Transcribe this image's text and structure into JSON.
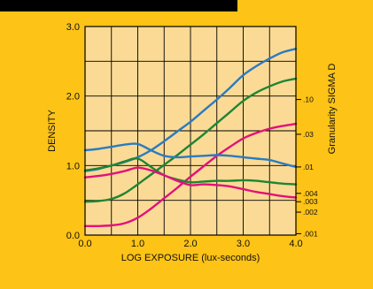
{
  "chart_data": {
    "type": "line",
    "title": "",
    "xlabel": "LOG EXPOSURE (lux-seconds)",
    "ylabel": "DENSITY",
    "ylabel_right": "Granularity SIGMA D",
    "xlim": [
      0.0,
      4.0
    ],
    "ylim": [
      0.0,
      3.0
    ],
    "x_ticks": [
      "0.0",
      "1.0",
      "2.0",
      "3.0",
      "4.0"
    ],
    "y_ticks": [
      "0.0",
      "1.0",
      "2.0",
      "3.0"
    ],
    "right_ticks": [
      {
        "label": ".10",
        "density": 1.95
      },
      {
        "label": ".03",
        "density": 1.45
      },
      {
        "label": ".01",
        "density": 0.98
      },
      {
        "label": ".004",
        "density": 0.6
      },
      {
        "label": ".003",
        "density": 0.48
      },
      {
        "label": ".002",
        "density": 0.33
      },
      {
        "label": ".001",
        "density": 0.02
      }
    ],
    "grid": true,
    "colors": {
      "plot_background": "#fbda95",
      "frame_background": "#fdc316",
      "grid": "#000000",
      "blue": "#2a7bc1",
      "green": "#1e8533",
      "magenta": "#e2117a"
    },
    "series": [
      {
        "group": "density",
        "color": "blue",
        "x": [
          0.0,
          0.25,
          0.5,
          0.75,
          1.0,
          1.25,
          1.5,
          1.75,
          2.0,
          2.25,
          2.5,
          2.75,
          3.0,
          3.25,
          3.5,
          3.75,
          4.0
        ],
        "y": [
          0.92,
          0.95,
          1.0,
          1.05,
          1.12,
          1.22,
          1.35,
          1.49,
          1.63,
          1.79,
          1.95,
          2.12,
          2.3,
          2.43,
          2.54,
          2.63,
          2.68
        ]
      },
      {
        "group": "density",
        "color": "green",
        "x": [
          0.0,
          0.25,
          0.5,
          0.75,
          1.0,
          1.25,
          1.5,
          1.75,
          2.0,
          2.25,
          2.5,
          2.75,
          3.0,
          3.25,
          3.5,
          3.75,
          4.0
        ],
        "y": [
          0.48,
          0.49,
          0.52,
          0.6,
          0.73,
          0.87,
          1.01,
          1.15,
          1.3,
          1.45,
          1.61,
          1.77,
          1.93,
          2.05,
          2.14,
          2.21,
          2.25
        ]
      },
      {
        "group": "density",
        "color": "magenta",
        "x": [
          0.0,
          0.25,
          0.5,
          0.75,
          1.0,
          1.25,
          1.5,
          1.75,
          2.0,
          2.25,
          2.5,
          2.75,
          3.0,
          3.25,
          3.5,
          3.75,
          4.0
        ],
        "y": [
          0.13,
          0.13,
          0.14,
          0.17,
          0.25,
          0.38,
          0.53,
          0.68,
          0.84,
          0.99,
          1.14,
          1.27,
          1.39,
          1.47,
          1.53,
          1.57,
          1.6
        ]
      },
      {
        "group": "granularity",
        "color": "blue",
        "x": [
          0.0,
          0.25,
          0.5,
          0.75,
          1.0,
          1.25,
          1.5,
          1.75,
          2.0,
          2.25,
          2.5,
          2.75,
          3.0,
          3.25,
          3.5,
          3.75,
          4.0
        ],
        "y": [
          1.22,
          1.24,
          1.27,
          1.3,
          1.31,
          1.22,
          1.14,
          1.12,
          1.13,
          1.14,
          1.15,
          1.14,
          1.12,
          1.1,
          1.08,
          1.03,
          0.98
        ]
      },
      {
        "group": "granularity",
        "color": "green",
        "x": [
          0.0,
          0.25,
          0.5,
          0.75,
          1.0,
          1.25,
          1.5,
          1.75,
          2.0,
          2.25,
          2.5,
          2.75,
          3.0,
          3.25,
          3.5,
          3.75,
          4.0
        ],
        "y": [
          0.93,
          0.96,
          1.0,
          1.06,
          1.1,
          0.98,
          0.86,
          0.8,
          0.76,
          0.77,
          0.78,
          0.78,
          0.79,
          0.78,
          0.76,
          0.74,
          0.73
        ]
      },
      {
        "group": "granularity",
        "color": "magenta",
        "x": [
          0.0,
          0.25,
          0.5,
          0.75,
          1.0,
          1.25,
          1.5,
          1.75,
          2.0,
          2.25,
          2.5,
          2.75,
          3.0,
          3.25,
          3.5,
          3.75,
          4.0
        ],
        "y": [
          0.83,
          0.85,
          0.88,
          0.92,
          0.97,
          0.93,
          0.86,
          0.78,
          0.72,
          0.73,
          0.72,
          0.7,
          0.66,
          0.62,
          0.59,
          0.56,
          0.54
        ]
      }
    ]
  }
}
